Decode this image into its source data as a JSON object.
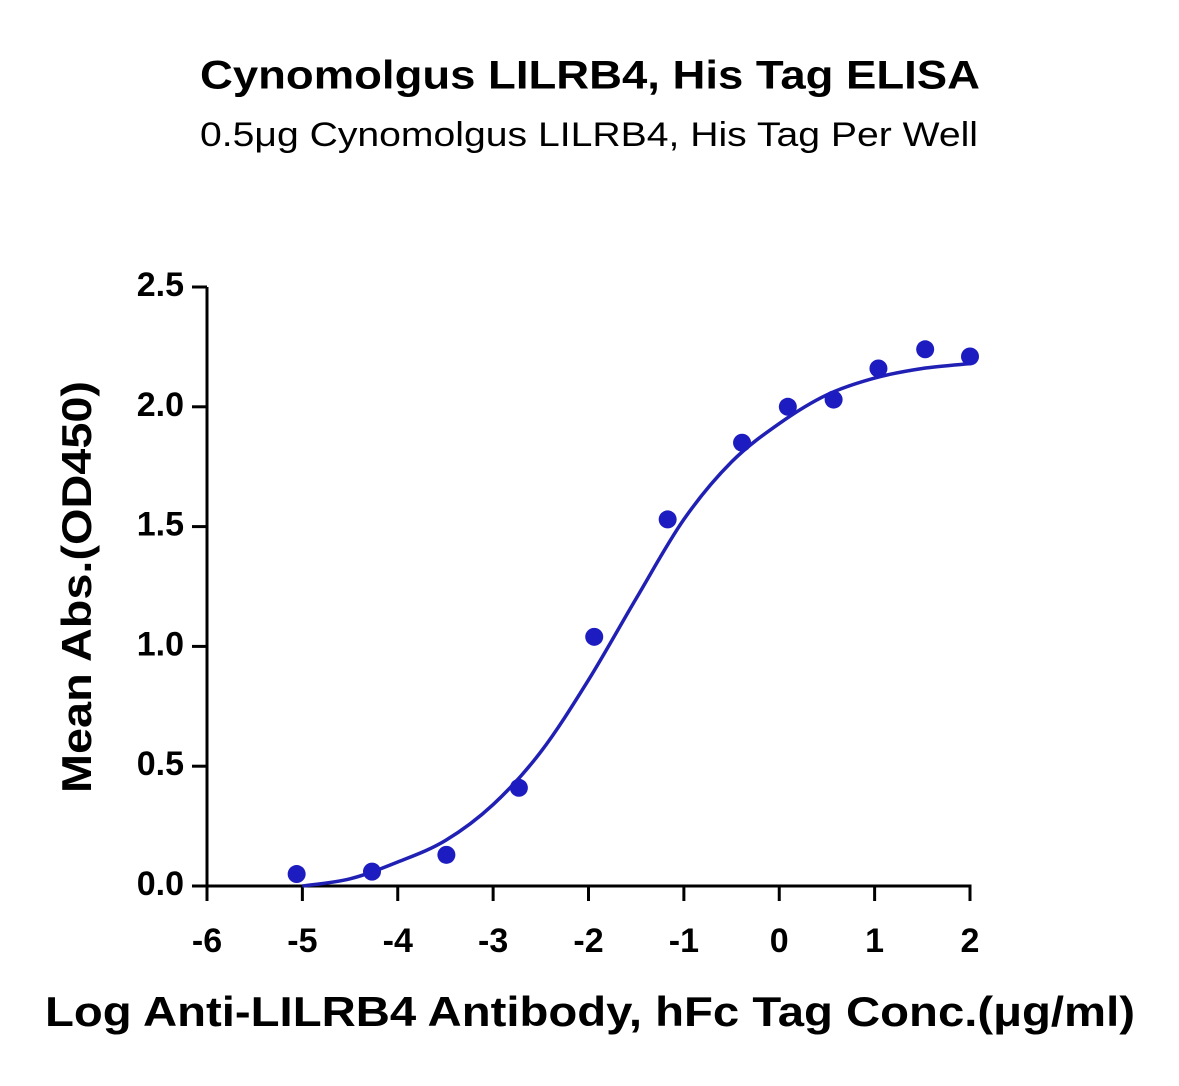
{
  "chart_data": {
    "type": "scatter",
    "title": "Cynomolgus LILRB4, His Tag ELISA",
    "subtitle": "0.5μg Cynomolgus LILRB4, His Tag Per Well",
    "x_label": "Log Anti-LILRB4 Antibody, hFc Tag Conc.(μg/ml)",
    "y_label": "Mean Abs.(OD450)",
    "color": "#1c1cc0",
    "x": [
      -5.06,
      -4.27,
      -3.49,
      -2.73,
      -1.94,
      -1.17,
      -0.39,
      0.09,
      0.57,
      1.04,
      1.53,
      2.0
    ],
    "values": [
      0.05,
      0.06,
      0.13,
      0.41,
      1.04,
      1.53,
      1.85,
      2.0,
      2.03,
      2.16,
      2.24,
      2.21
    ],
    "fit": {
      "color": "#2020b4",
      "x": [
        -5,
        -4.5,
        -4,
        -3.5,
        -3,
        -2.5,
        -2,
        -1.5,
        -1,
        -0.5,
        0,
        0.5,
        1,
        1.5,
        2
      ],
      "values": [
        0.0,
        0.03,
        0.1,
        0.19,
        0.34,
        0.56,
        0.86,
        1.2,
        1.53,
        1.77,
        1.93,
        2.05,
        2.12,
        2.16,
        2.18
      ]
    },
    "xlim": [
      -6,
      2
    ],
    "xticks": [
      -6,
      -5,
      -4,
      -3,
      -2,
      -1,
      0,
      1,
      2
    ],
    "ylim": [
      0,
      2.5
    ],
    "yticks": [
      {
        "value": 0,
        "label": "0.0"
      },
      0.5,
      {
        "value": 1,
        "label": "1.0"
      },
      1.5,
      {
        "value": 2,
        "label": "2.0"
      },
      2.5
    ],
    "grid": false
  }
}
